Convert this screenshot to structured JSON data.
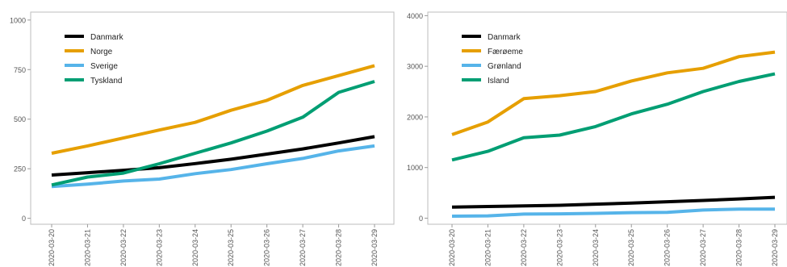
{
  "chart_data": [
    {
      "type": "line",
      "x": [
        "2020-03-20",
        "2020-03-21",
        "2020-03-22",
        "2020-03-23",
        "2020-03-24",
        "2020-03-25",
        "2020-03-26",
        "2020-03-27",
        "2020-03-28",
        "2020-03-29"
      ],
      "ylim": [
        -30,
        1040
      ],
      "yticks": [
        0,
        250,
        500,
        750,
        1000
      ],
      "ytick_labels": [
        "0",
        "250",
        "500",
        "750",
        "1000"
      ],
      "grid": false,
      "legend": "top-left",
      "series": [
        {
          "name": "Danmark",
          "color": "#000000",
          "values": [
            218,
            230,
            242,
            255,
            276,
            298,
            324,
            350,
            380,
            412
          ]
        },
        {
          "name": "Norge",
          "color": "#E69F00",
          "values": [
            328,
            365,
            405,
            445,
            484,
            545,
            595,
            670,
            720,
            770
          ]
        },
        {
          "name": "Sverige",
          "color": "#56B4E9",
          "values": [
            160,
            172,
            188,
            198,
            225,
            246,
            275,
            302,
            340,
            365
          ]
        },
        {
          "name": "Tyskland",
          "color": "#009E73",
          "values": [
            168,
            208,
            228,
            275,
            328,
            380,
            440,
            510,
            635,
            690
          ]
        }
      ]
    },
    {
      "type": "line",
      "x": [
        "2020-03-20",
        "2020-03-21",
        "2020-03-22",
        "2020-03-23",
        "2020-03-24",
        "2020-03-25",
        "2020-03-26",
        "2020-03-27",
        "2020-03-28",
        "2020-03-29"
      ],
      "ylim": [
        -120,
        4070
      ],
      "yticks": [
        0,
        1000,
        2000,
        3000,
        4000
      ],
      "ytick_labels": [
        "0",
        "1000",
        "2000",
        "3000",
        "4000"
      ],
      "grid": false,
      "legend": "top-left",
      "series": [
        {
          "name": "Danmark",
          "color": "#000000",
          "values": [
            218,
            230,
            242,
            255,
            276,
            298,
            324,
            350,
            380,
            412
          ]
        },
        {
          "name": "Færøeme",
          "color": "#E69F00",
          "values": [
            1650,
            1900,
            2360,
            2420,
            2500,
            2710,
            2870,
            2960,
            3190,
            3280
          ]
        },
        {
          "name": "Grønland",
          "color": "#56B4E9",
          "values": [
            40,
            45,
            80,
            85,
            95,
            110,
            115,
            160,
            180,
            180
          ]
        },
        {
          "name": "Island",
          "color": "#009E73",
          "values": [
            1150,
            1320,
            1590,
            1640,
            1810,
            2060,
            2250,
            2500,
            2700,
            2850
          ]
        }
      ]
    }
  ]
}
